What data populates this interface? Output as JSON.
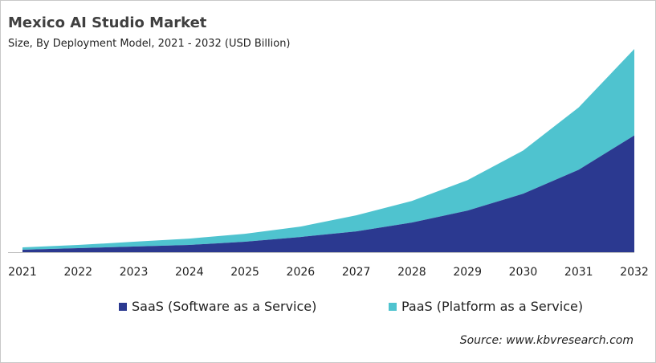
{
  "chart_data": {
    "type": "area",
    "stacked": true,
    "title": "Mexico AI Studio Market",
    "subtitle": "Size, By Deployment Model, 2021 - 2032 (USD Billion)",
    "categories": [
      "2021",
      "2022",
      "2023",
      "2024",
      "2025",
      "2026",
      "2027",
      "2028",
      "2029",
      "2030",
      "2031",
      "2032"
    ],
    "series": [
      {
        "name": "SaaS (Software as a Service)",
        "color": "#2b3990",
        "values": [
          3,
          5,
          7,
          9,
          13,
          19,
          26,
          37,
          52,
          73,
          103,
          146
        ]
      },
      {
        "name": "PaaS (Platform as a Service)",
        "color": "#4fc3cf",
        "values": [
          3,
          4,
          6,
          8,
          10,
          13,
          20,
          27,
          38,
          54,
          78,
          108
        ]
      }
    ],
    "y_axis_shown": false,
    "grid": false,
    "legend_position": "bottom"
  },
  "source": "Source: www.kbvresearch.com"
}
